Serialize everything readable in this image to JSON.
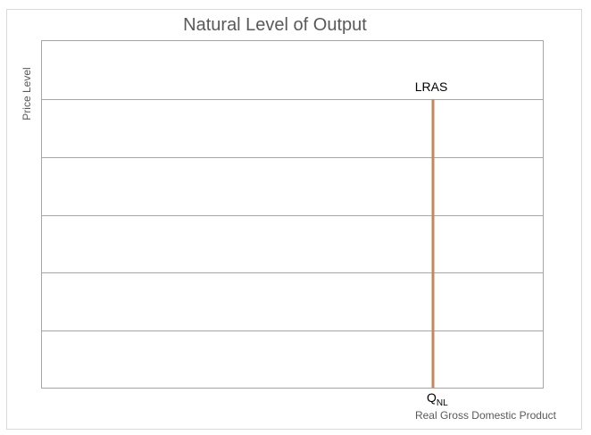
{
  "title": "Natural Level of Output",
  "y_axis_label": "Price Level",
  "x_axis_label": "Real Gross Domestic Product",
  "curve_label": "LRAS",
  "output_label": {
    "main": "Q",
    "subscript": "NL"
  }
}
